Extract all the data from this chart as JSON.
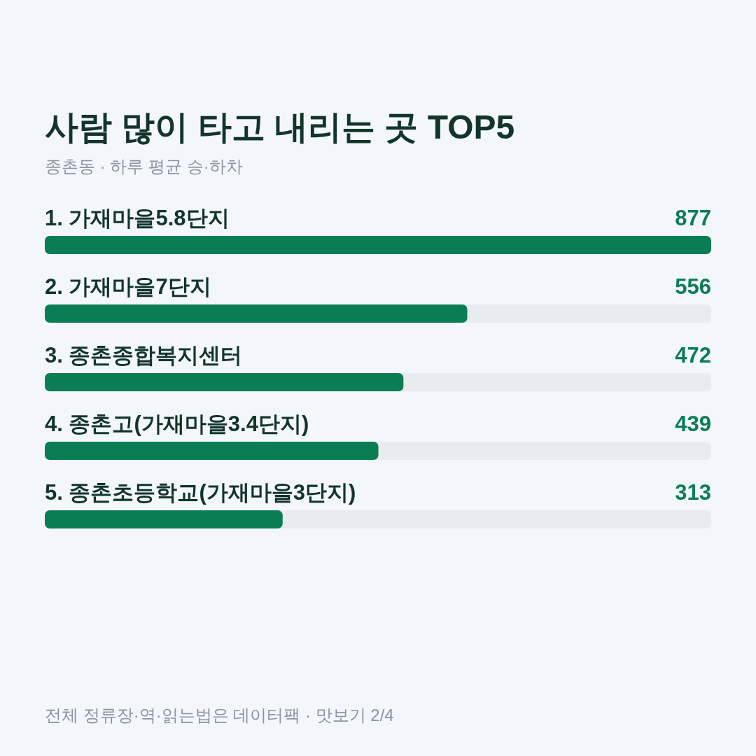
{
  "chart_data": {
    "type": "bar",
    "orientation": "horizontal",
    "title": "사람 많이 타고 내리는 곳 TOP5",
    "subtitle": "종촌동 · 하루 평균 승·하차",
    "categories": [
      "1. 가재마을5.8단지",
      "2. 가재마을7단지",
      "3. 종촌종합복지센터",
      "4. 종촌고(가재마을3.4단지)",
      "5. 종촌초등학교(가재마을3단지)"
    ],
    "values": [
      877,
      556,
      472,
      439,
      313
    ],
    "color": "#0b7d55",
    "xlim": [
      0,
      877
    ],
    "data_labels": true,
    "annotations": [
      "전체 정류장·역·읽는법은 데이터팩 · 맛보기 2/4"
    ]
  }
}
